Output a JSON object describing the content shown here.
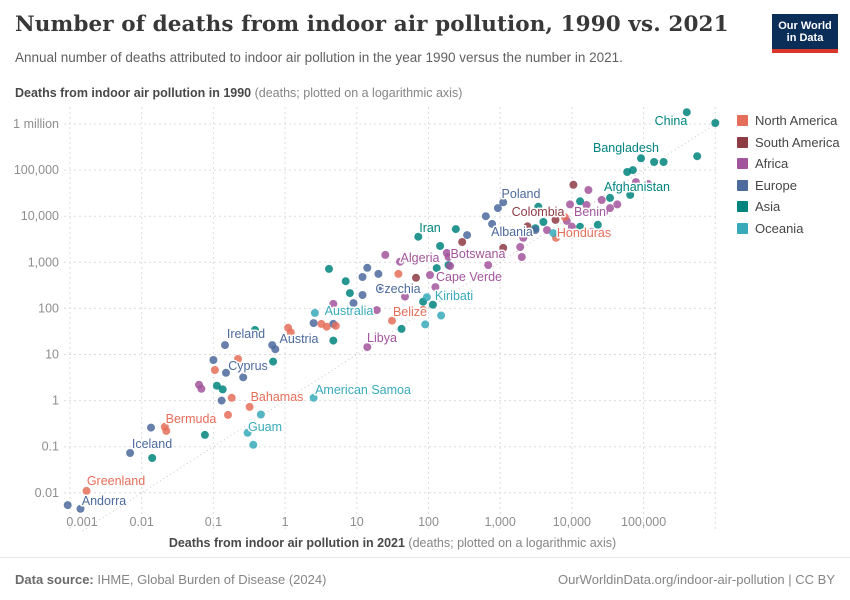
{
  "header": {
    "title": "Number of deaths from indoor air pollution, 1990 vs. 2021",
    "subtitle": "Annual number of deaths attributed to indoor air pollution in the year 1990 versus the number in 2021.",
    "logo": {
      "line1": "Our World",
      "line2": "in Data"
    }
  },
  "chart_data": {
    "type": "scatter",
    "x_axis": {
      "title_bold": "Deaths from indoor air pollution in 2021",
      "title_rest": " (deaths; plotted on a logarithmic axis)",
      "scale": "log",
      "ticks": [
        {
          "label": "0.001",
          "log": -3
        },
        {
          "label": "0.01",
          "log": -2
        },
        {
          "label": "0.1",
          "log": -1
        },
        {
          "label": "1",
          "log": 0
        },
        {
          "label": "10",
          "log": 1
        },
        {
          "label": "100",
          "log": 2
        },
        {
          "label": "1,000",
          "log": 3
        },
        {
          "label": "10,000",
          "log": 4
        },
        {
          "label": "100,000",
          "log": 5
        },
        {
          "label": "",
          "log": 6
        }
      ]
    },
    "y_axis": {
      "title_bold": "Deaths from indoor air pollution in 1990",
      "title_rest": " (deaths; plotted on a logarithmic axis)",
      "scale": "log",
      "ticks": [
        {
          "label": "0.01",
          "log": -2
        },
        {
          "label": "0.1",
          "log": -1
        },
        {
          "label": "1",
          "log": 0
        },
        {
          "label": "10",
          "log": 1
        },
        {
          "label": "100",
          "log": 2
        },
        {
          "label": "1,000",
          "log": 3
        },
        {
          "label": "10,000",
          "log": 4
        },
        {
          "label": "100,000",
          "log": 5
        },
        {
          "label": "1 million",
          "log": 6
        }
      ]
    },
    "legend": [
      {
        "label": "North America",
        "color": "#E56E5A"
      },
      {
        "label": "South America",
        "color": "#8E3B43"
      },
      {
        "label": "Africa",
        "color": "#A2559C"
      },
      {
        "label": "Europe",
        "color": "#4C6A9C"
      },
      {
        "label": "Asia",
        "color": "#00847E"
      },
      {
        "label": "Oceania",
        "color": "#38AABA"
      }
    ],
    "diagonal_line": {
      "meaning": "equal deaths in 1990 and 2021 (y = x)",
      "style": "dotted"
    },
    "points": [
      [
        400000,
        1800000,
        4,
        "China",
        671,
        121
      ],
      [
        1000000,
        1050000,
        4
      ],
      [
        560000,
        200000,
        4
      ],
      [
        140000,
        150000,
        4,
        "Bangladesh",
        626,
        148
      ],
      [
        92000,
        180000,
        4
      ],
      [
        190000,
        150000,
        4
      ],
      [
        59000,
        91000,
        4
      ],
      [
        71000,
        100000,
        4
      ],
      [
        65000,
        29000,
        4,
        "Afghanistan",
        637,
        187
      ],
      [
        34000,
        25000,
        4
      ],
      [
        13000,
        21000,
        4
      ],
      [
        3400,
        16000,
        4
      ],
      [
        4000,
        7500,
        4
      ],
      [
        3100,
        5500,
        4
      ],
      [
        13000,
        5900,
        4
      ],
      [
        23000,
        6500,
        4
      ],
      [
        240,
        5250,
        4
      ],
      [
        72,
        3600,
        4,
        "Iran",
        430,
        228
      ],
      [
        145,
        2260,
        4
      ],
      [
        190,
        870,
        4
      ],
      [
        130,
        750,
        4
      ],
      [
        115,
        120,
        4
      ],
      [
        84,
        140,
        4
      ],
      [
        4.1,
        720,
        4
      ],
      [
        7,
        390,
        4
      ],
      [
        8,
        215,
        4
      ],
      [
        4.7,
        20,
        4
      ],
      [
        42,
        36,
        4
      ],
      [
        0.38,
        34,
        4
      ],
      [
        0.68,
        7,
        4
      ],
      [
        0.112,
        2.1,
        4
      ],
      [
        0.135,
        1.75,
        4
      ],
      [
        0.076,
        0.18,
        4
      ],
      [
        0.014,
        0.057,
        4
      ],
      [
        78000,
        55000,
        2
      ],
      [
        115000,
        50000,
        2
      ],
      [
        17000,
        37000,
        2
      ],
      [
        26000,
        22500,
        2
      ],
      [
        9400,
        18000,
        2
      ],
      [
        16000,
        17500,
        2
      ],
      [
        34000,
        15000,
        2
      ],
      [
        43000,
        18000,
        2
      ],
      [
        28000,
        12000,
        2,
        "Benin",
        590,
        212
      ],
      [
        19000,
        4600,
        2
      ],
      [
        8500,
        7900,
        2
      ],
      [
        10000,
        5900,
        2
      ],
      [
        4500,
        5000,
        2
      ],
      [
        2100,
        3400,
        2
      ],
      [
        1900,
        2150,
        2
      ],
      [
        2000,
        1300,
        2
      ],
      [
        40,
        1030,
        2,
        "Algeria",
        420,
        258
      ],
      [
        25,
        1450,
        2
      ],
      [
        180,
        1600,
        2
      ],
      [
        190,
        1300,
        2,
        "Botswana",
        478,
        254
      ],
      [
        200,
        830,
        2
      ],
      [
        680,
        870,
        2
      ],
      [
        105,
        530,
        2,
        "Cape Verde",
        469,
        277
      ],
      [
        125,
        290,
        2
      ],
      [
        47,
        180,
        2
      ],
      [
        19,
        92,
        2
      ],
      [
        14,
        14.5,
        2,
        "Libya",
        382,
        338
      ],
      [
        4.7,
        125,
        2
      ],
      [
        0.063,
        2.2,
        2
      ],
      [
        0.068,
        1.8,
        2
      ],
      [
        1100,
        20000,
        3,
        "Poland",
        521,
        194
      ],
      [
        930,
        15000,
        3
      ],
      [
        630,
        10000,
        3
      ],
      [
        770,
        6800,
        3
      ],
      [
        3100,
        5000,
        3,
        "Albania",
        512,
        232
      ],
      [
        345,
        3900,
        3
      ],
      [
        21,
        290,
        3,
        "Czechia",
        398,
        289
      ],
      [
        14,
        760,
        3
      ],
      [
        20,
        560,
        3
      ],
      [
        12,
        480,
        3
      ],
      [
        12,
        195,
        3
      ],
      [
        9,
        130,
        3
      ],
      [
        2.5,
        48,
        3
      ],
      [
        4.7,
        46,
        3
      ],
      [
        0.66,
        16,
        3,
        "Austria",
        299,
        339
      ],
      [
        0.73,
        13,
        3
      ],
      [
        0.145,
        16,
        3,
        "Ireland",
        246,
        334
      ],
      [
        0.1,
        7.6,
        3
      ],
      [
        0.26,
        3.2,
        3,
        "Cyprus",
        248,
        366
      ],
      [
        0.15,
        4,
        3
      ],
      [
        0.13,
        1.0,
        3
      ],
      [
        0.0135,
        0.26,
        3
      ],
      [
        0.0069,
        0.073,
        3,
        "Iceland",
        152,
        444
      ],
      [
        0.00093,
        0.0054,
        3,
        "Andorra",
        104,
        501
      ],
      [
        0.0014,
        0.0045,
        3
      ],
      [
        10500,
        48000,
        1
      ],
      [
        5900,
        8300,
        1,
        "Colombia",
        538,
        212
      ],
      [
        2400,
        6000,
        1
      ],
      [
        1100,
        2050,
        1
      ],
      [
        295,
        2750,
        1
      ],
      [
        67,
        460,
        1
      ],
      [
        8000,
        9500,
        0
      ],
      [
        6000,
        3400,
        0,
        "Honduras",
        584,
        233
      ],
      [
        38,
        560,
        0
      ],
      [
        84,
        93,
        0
      ],
      [
        31,
        54,
        0,
        "Belize",
        410,
        312
      ],
      [
        3.2,
        46,
        0
      ],
      [
        3.8,
        40,
        0
      ],
      [
        5.1,
        42,
        0
      ],
      [
        1.1,
        38,
        0
      ],
      [
        1.2,
        30,
        0
      ],
      [
        0.22,
        8,
        0
      ],
      [
        0.105,
        4.6,
        0
      ],
      [
        0.32,
        0.73,
        0,
        "Bahamas",
        277,
        397
      ],
      [
        0.18,
        1.15,
        0
      ],
      [
        0.16,
        0.49,
        0
      ],
      [
        0.021,
        0.27,
        0,
        "Bermuda",
        191,
        419
      ],
      [
        0.022,
        0.22,
        0
      ],
      [
        0.0017,
        0.011,
        0,
        "Greenland",
        116,
        481
      ],
      [
        2.6,
        80,
        5,
        "Australia",
        349,
        311
      ],
      [
        95,
        175,
        5,
        "Kiribati",
        454,
        296
      ],
      [
        150,
        70,
        5
      ],
      [
        90,
        45,
        5
      ],
      [
        5500,
        4300,
        5
      ],
      [
        2.5,
        1.15,
        5,
        "American Samoa",
        363,
        390
      ],
      [
        0.46,
        0.5,
        5
      ],
      [
        0.3,
        0.2,
        5,
        "Guam",
        265,
        427
      ],
      [
        0.36,
        0.11,
        5
      ]
    ]
  },
  "footer": {
    "source_label": "Data source:",
    "source_text": " IHME, Global Burden of Disease (2024)",
    "rights": "OurWorldinData.org/indoor-air-pollution | CC BY"
  }
}
